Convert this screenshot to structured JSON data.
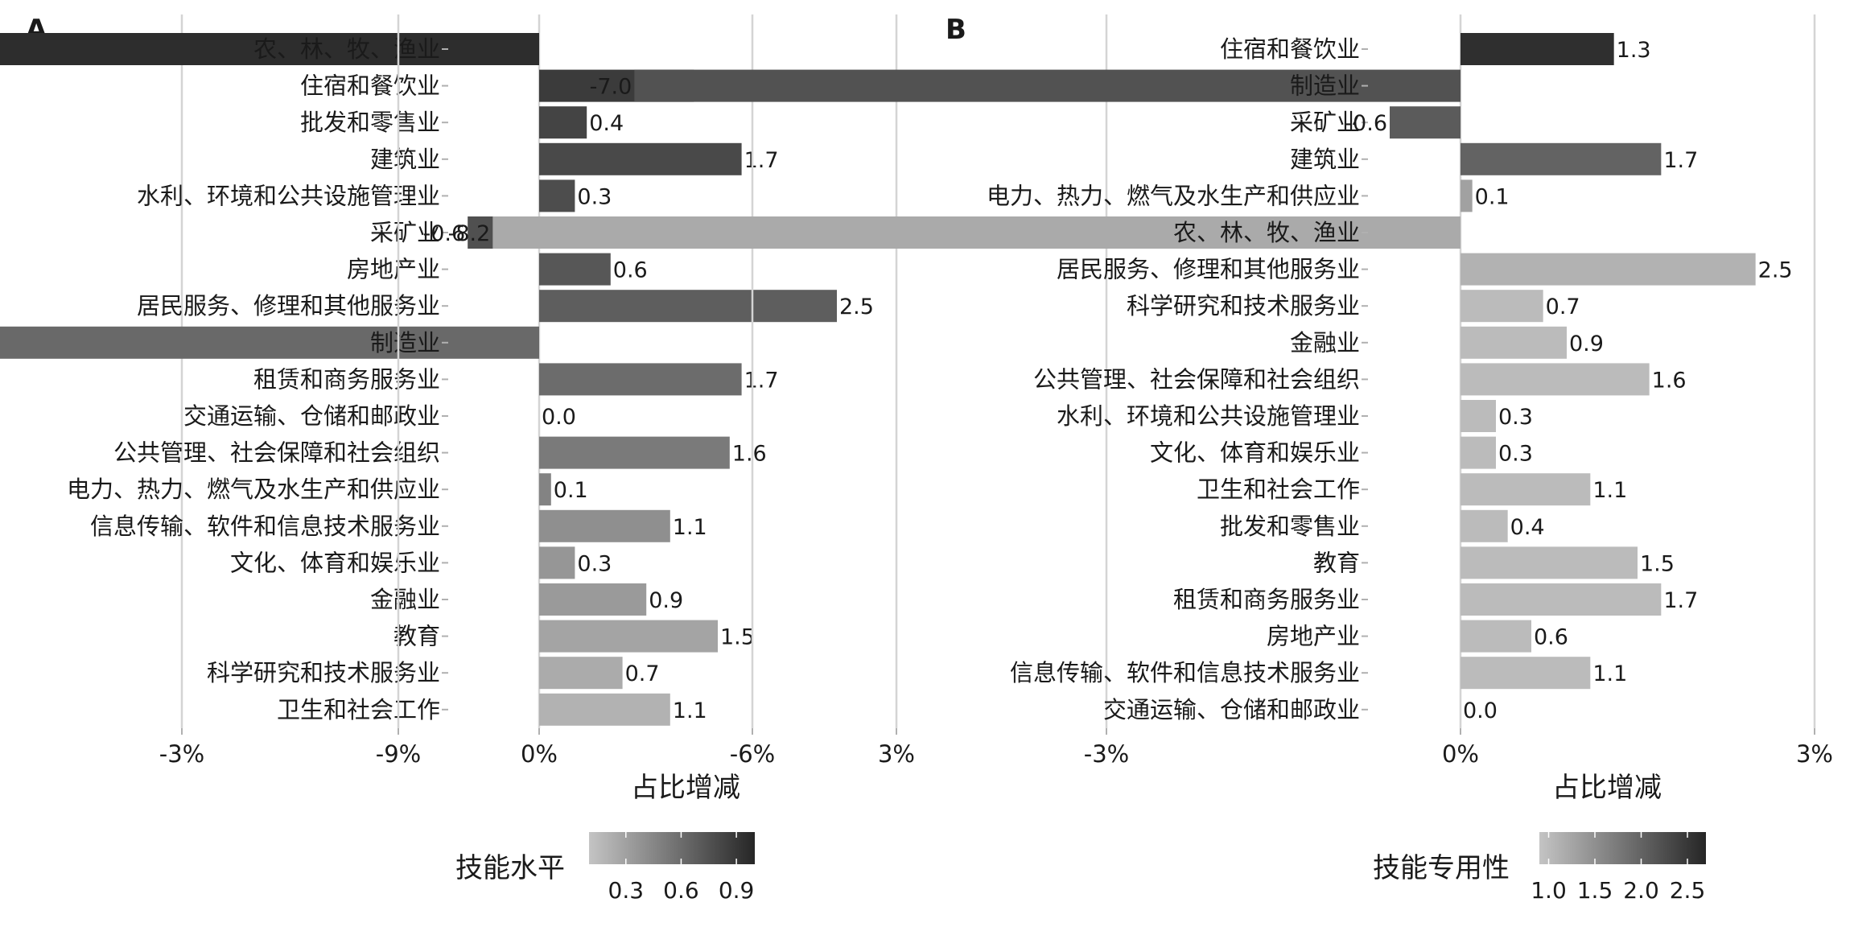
{
  "chart_data": [
    {
      "panel": "A",
      "type": "bar",
      "orientation": "horizontal",
      "xlabel": "占比增减",
      "xticks": [
        "-9%",
        "-6%",
        "-3%",
        "0%",
        "3%"
      ],
      "xlim": [
        -9.8,
        3
      ],
      "legend": {
        "title": "技能水平",
        "ticks": [
          "0.3",
          "0.6",
          "0.9"
        ],
        "min": 0.1,
        "max": 1.0,
        "tick_values": [
          0.3,
          0.6,
          0.9
        ],
        "colors": [
          "#c4c4c4",
          "#262626"
        ]
      },
      "categories": [
        "农、林、牧、渔业",
        "住宿和餐饮业",
        "批发和零售业",
        "建筑业",
        "水利、环境和公共设施管理业",
        "采矿业",
        "房地产业",
        "居民服务、修理和其他服务业",
        "制造业",
        "租赁和商务服务业",
        "交通运输、仓储和邮政业",
        "公共管理、社会保障和社会组织",
        "电力、热力、燃气及水生产和供应业",
        "信息传输、软件和信息技术服务业",
        "文化、体育和娱乐业",
        "金融业",
        "教育",
        "科学研究和技术服务业",
        "卫生和社会工作"
      ],
      "values": [
        -8.2,
        1.3,
        0.4,
        1.7,
        0.3,
        -0.6,
        0.6,
        2.5,
        -7.0,
        1.7,
        0.0,
        1.6,
        0.1,
        1.1,
        0.3,
        0.9,
        1.5,
        0.7,
        1.1
      ],
      "value_labels": [
        "-8.2",
        "1.3",
        "0.4",
        "1.7",
        "0.3",
        "-0.6",
        "0.6",
        "2.5",
        "-7.0",
        "1.7",
        "0.0",
        "1.6",
        "0.1",
        "1.1",
        "0.3",
        "0.9",
        "1.5",
        "0.7",
        "1.1"
      ],
      "color_values": [
        0.96,
        0.88,
        0.83,
        0.8,
        0.78,
        0.76,
        0.72,
        0.68,
        0.62,
        0.6,
        0.58,
        0.52,
        0.47,
        0.4,
        0.36,
        0.34,
        0.28,
        0.24,
        0.2
      ]
    },
    {
      "panel": "B",
      "type": "bar",
      "orientation": "horizontal",
      "xlabel": "占比增减",
      "xticks": [
        "-9%",
        "-6%",
        "-3%",
        "0%",
        "3%"
      ],
      "xlim": [
        -9.8,
        3
      ],
      "legend": {
        "title": "技能专用性",
        "ticks": [
          "1.0",
          "1.5",
          "2.0",
          "2.5"
        ],
        "min": 0.9,
        "max": 2.7,
        "tick_values": [
          1.0,
          1.5,
          2.0,
          2.5
        ],
        "colors": [
          "#c4c4c4",
          "#262626"
        ]
      },
      "categories": [
        "住宿和餐饮业",
        "制造业",
        "采矿业",
        "建筑业",
        "电力、热力、燃气及水生产和供应业",
        "农、林、牧、渔业",
        "居民服务、修理和其他服务业",
        "科学研究和技术服务业",
        "金融业",
        "公共管理、社会保障和社会组织",
        "水利、环境和公共设施管理业",
        "文化、体育和娱乐业",
        "卫生和社会工作",
        "批发和零售业",
        "教育",
        "租赁和商务服务业",
        "房地产业",
        "信息传输、软件和信息技术服务业",
        "交通运输、仓储和邮政业"
      ],
      "values": [
        1.3,
        -7.0,
        -0.6,
        1.7,
        0.1,
        -8.2,
        2.5,
        0.7,
        0.9,
        1.6,
        0.3,
        0.3,
        1.1,
        0.4,
        1.5,
        1.7,
        0.6,
        1.1,
        0.0
      ],
      "value_labels": [
        "1.3",
        "-7.0",
        "-0.6",
        "1.7",
        "0.1",
        "-8.2",
        "2.5",
        "0.7",
        "0.9",
        "1.6",
        "0.3",
        "0.3",
        "1.1",
        "0.4",
        "1.5",
        "1.7",
        "0.6",
        "1.1",
        "0.0"
      ],
      "color_values": [
        2.6,
        2.2,
        2.1,
        2.0,
        1.3,
        1.2,
        1.1,
        1.0,
        1.0,
        1.0,
        1.0,
        1.0,
        1.0,
        1.0,
        1.0,
        1.0,
        1.0,
        1.0,
        1.0
      ]
    }
  ]
}
